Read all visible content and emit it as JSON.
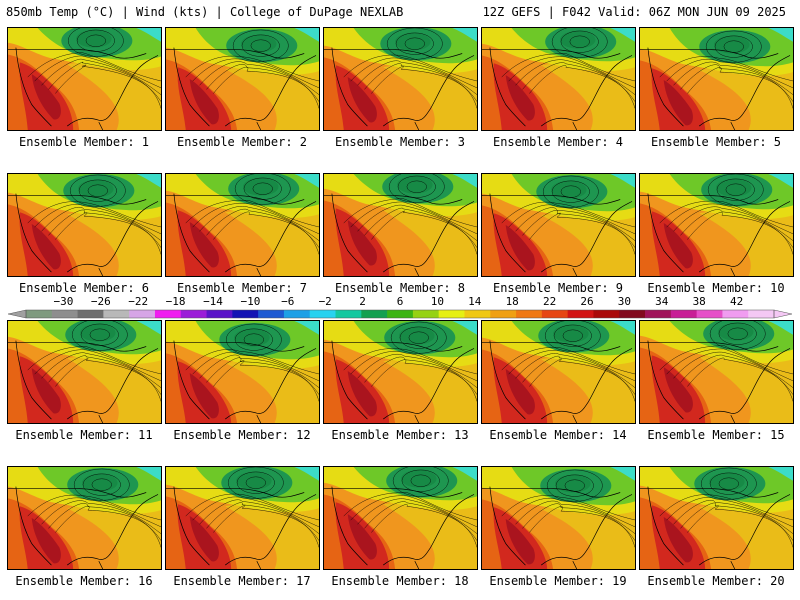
{
  "header": {
    "left": "850mb Temp (°C) | Wind (kts) | College of DuPage NEXLAB",
    "right": "12Z GEFS | F042 Valid: 06Z MON JUN 09 2025"
  },
  "panels": [
    {
      "label": "Ensemble Member: 1"
    },
    {
      "label": "Ensemble Member: 2"
    },
    {
      "label": "Ensemble Member: 3"
    },
    {
      "label": "Ensemble Member: 4"
    },
    {
      "label": "Ensemble Member: 5"
    },
    {
      "label": "Ensemble Member: 6"
    },
    {
      "label": "Ensemble Member: 7"
    },
    {
      "label": "Ensemble Member: 8"
    },
    {
      "label": "Ensemble Member: 9"
    },
    {
      "label": "Ensemble Member: 10"
    },
    {
      "label": "Ensemble Member: 11"
    },
    {
      "label": "Ensemble Member: 12"
    },
    {
      "label": "Ensemble Member: 13"
    },
    {
      "label": "Ensemble Member: 14"
    },
    {
      "label": "Ensemble Member: 15"
    },
    {
      "label": "Ensemble Member: 16"
    },
    {
      "label": "Ensemble Member: 17"
    },
    {
      "label": "Ensemble Member: 18"
    },
    {
      "label": "Ensemble Member: 19"
    },
    {
      "label": "Ensemble Member: 20"
    }
  ],
  "colorbar": {
    "tick_labels": [
      "−30",
      "−26",
      "−22",
      "−18",
      "−14",
      "−10",
      "−6",
      "−2",
      "2",
      "6",
      "10",
      "14",
      "18",
      "22",
      "26",
      "30",
      "34",
      "38",
      "42"
    ],
    "colors": [
      "#7f9a7f",
      "#8e8e8e",
      "#6e6e6e",
      "#b8b8b8",
      "#d6a5e6",
      "#f01cf0",
      "#9b1cd8",
      "#5a14c8",
      "#1414b4",
      "#1e5ad2",
      "#1ea0e6",
      "#28d2f0",
      "#14c8a0",
      "#14a050",
      "#3cb414",
      "#96d214",
      "#e6f014",
      "#f0c814",
      "#f0a014",
      "#f07814",
      "#e64614",
      "#d21414",
      "#aa0a0a",
      "#820a1e",
      "#a0145a",
      "#c81e96",
      "#e650c8",
      "#f09cf0",
      "#f4c8f4"
    ],
    "domain": [
      -34,
      46
    ]
  },
  "map_colors": {
    "north_green": "#1e9650",
    "mid_green": "#6ec828",
    "yellow": "#e6dc14",
    "orange": "#f0961e",
    "dark_orange": "#e66414",
    "red": "#d2281e",
    "deep_red": "#aa141e",
    "cyan": "#3cdcc8"
  }
}
